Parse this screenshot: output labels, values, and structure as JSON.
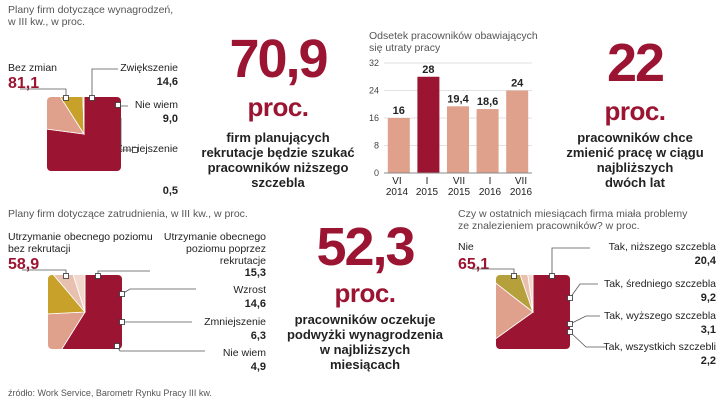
{
  "source": "źródło: Work Service, Barometr Rynku Pracy III kw.",
  "chart_data": [
    {
      "type": "pie",
      "title": "Plany firm dotyczące wynagrodzeń, w III kw., w proc.",
      "categories": [
        "Bez zmian",
        "Zwiększenie",
        "Nie wiem",
        "Zmniejszenie"
      ],
      "values": [
        81.1,
        14.6,
        9.0,
        0.5
      ],
      "value_labels": [
        "81,1",
        "14,6",
        "9,0",
        "0,5"
      ]
    },
    {
      "type": "bar",
      "title": "Odsetek pracowników obawiających się utraty pracy",
      "categories": [
        "VI 2014",
        "I 2015",
        "VII 2015",
        "I 2016",
        "VII 2016"
      ],
      "values": [
        16,
        28,
        19.4,
        18.6,
        24
      ],
      "value_labels": [
        "16",
        "28",
        "19,4",
        "18,6",
        "24"
      ],
      "ylim": [
        0,
        32
      ],
      "yticks": [
        0,
        8,
        16,
        24,
        32
      ],
      "ytick_labels": [
        "0",
        "8",
        "16",
        "24",
        "32"
      ]
    },
    {
      "type": "pie",
      "title": "Plany firm dotyczące zatrudnienia, w III kw., w proc.",
      "categories": [
        "Utrzymanie obecnego poziomu bez rekrutacji",
        "Utrzymanie obecnego poziomu poprzez rekrutacje",
        "Wzrost",
        "Zmniejszenie",
        "Nie wiem"
      ],
      "values": [
        58.9,
        15.3,
        14.6,
        6.3,
        4.9
      ],
      "value_labels": [
        "58,9",
        "15,3",
        "14,6",
        "6,3",
        "4,9"
      ]
    },
    {
      "type": "pie",
      "title": "Czy w ostatnich miesiącach firma miała problemy ze znalezieniem pracowników? w proc.",
      "categories": [
        "Nie",
        "Tak, niższego szczebla",
        "Tak, średniego szczebla",
        "Tak, wyższego szczebla",
        "Tak, wszystkich szczebli"
      ],
      "values": [
        65.1,
        20.4,
        9.2,
        3.1,
        2.2
      ],
      "value_labels": [
        "65,1",
        "20,4",
        "9,2",
        "3,1",
        "2,2"
      ]
    }
  ],
  "panel1": {
    "title1": "Plany firm dotyczące wynagrodzeń,",
    "title2": "w III kw., w proc.",
    "l0": "Bez zmian",
    "l1": "Zwiększenie",
    "l2": "Nie wiem",
    "l3": "Zmniejszenie"
  },
  "stat1": {
    "number": "70,9",
    "unit": "proc.",
    "desc": [
      "firm planujących",
      "rekrutacje będzie szukać",
      "pracowników niższego",
      "szczebla"
    ]
  },
  "panel2": {
    "title1": "Odsetek pracowników obawiających",
    "title2": "się utraty pracy",
    "xlabels": [
      [
        "VI",
        "2014"
      ],
      [
        "I",
        "2015"
      ],
      [
        "VII",
        "2015"
      ],
      [
        "I",
        "2016"
      ],
      [
        "VII",
        "2016"
      ]
    ]
  },
  "stat2": {
    "number": "22",
    "unit": "proc.",
    "desc": [
      "pracowników chce",
      "zmienić pracę w ciągu",
      "najbliższych",
      "dwóch lat"
    ]
  },
  "panel3": {
    "title": "Plany firm dotyczące zatrudnienia, w III kw., w proc.",
    "l0a": "Utrzymanie obecnego poziomu",
    "l0b": "bez rekrutacji",
    "l1a": "Utrzymanie obecnego",
    "l1b": "poziomu poprzez",
    "l1c": "rekrutacje",
    "l2": "Wzrost",
    "l3": "Zmniejszenie",
    "l4": "Nie wiem"
  },
  "stat3": {
    "number": "52,3",
    "unit": "proc.",
    "desc": [
      "pracowników oczekuje",
      "podwyżki wynagrodzenia",
      "w najbliższych",
      "miesiącach"
    ]
  },
  "panel4": {
    "title1": "Czy w ostatnich miesiącach firma miała problemy",
    "title2": "ze znalezieniem pracowników? w proc.",
    "l0": "Nie",
    "l1": "Tak, niższego szczebla",
    "l2": "Tak, średniego szczebla",
    "l3": "Tak, wyższego szczebla",
    "l4": "Tak, wszystkich szczebli"
  },
  "colors": {
    "red": "#9b1532",
    "salmon": "#dfa08c",
    "gold": "#c8a12a",
    "gold2": "#b5a03c",
    "light": "#e8c0b0",
    "pale": "#f2d8cc"
  }
}
